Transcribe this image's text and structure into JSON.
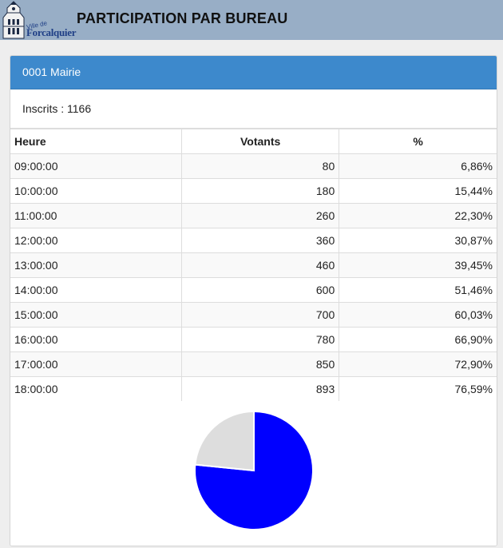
{
  "header": {
    "logo_small": "Ville de",
    "logo_big": "Forcalquier",
    "title": "PARTICIPATION PAR BUREAU"
  },
  "panel": {
    "bureau": "0001 Mairie",
    "inscrits": "Inscrits : 1166"
  },
  "table": {
    "headers": [
      "Heure",
      "Votants",
      "%"
    ],
    "rows": [
      {
        "heure": "09:00:00",
        "votants": "80",
        "pct": "6,86%"
      },
      {
        "heure": "10:00:00",
        "votants": "180",
        "pct": "15,44%"
      },
      {
        "heure": "11:00:00",
        "votants": "260",
        "pct": "22,30%"
      },
      {
        "heure": "12:00:00",
        "votants": "360",
        "pct": "30,87%"
      },
      {
        "heure": "13:00:00",
        "votants": "460",
        "pct": "39,45%"
      },
      {
        "heure": "14:00:00",
        "votants": "600",
        "pct": "51,46%"
      },
      {
        "heure": "15:00:00",
        "votants": "700",
        "pct": "60,03%"
      },
      {
        "heure": "16:00:00",
        "votants": "780",
        "pct": "66,90%"
      },
      {
        "heure": "17:00:00",
        "votants": "850",
        "pct": "72,90%"
      },
      {
        "heure": "18:00:00",
        "votants": "893",
        "pct": "76,59%"
      }
    ]
  },
  "chart_data": {
    "type": "pie",
    "slices": [
      {
        "value": 76.59,
        "color": "#0000ff"
      },
      {
        "value": 23.41,
        "color": "#dddddd"
      }
    ]
  }
}
